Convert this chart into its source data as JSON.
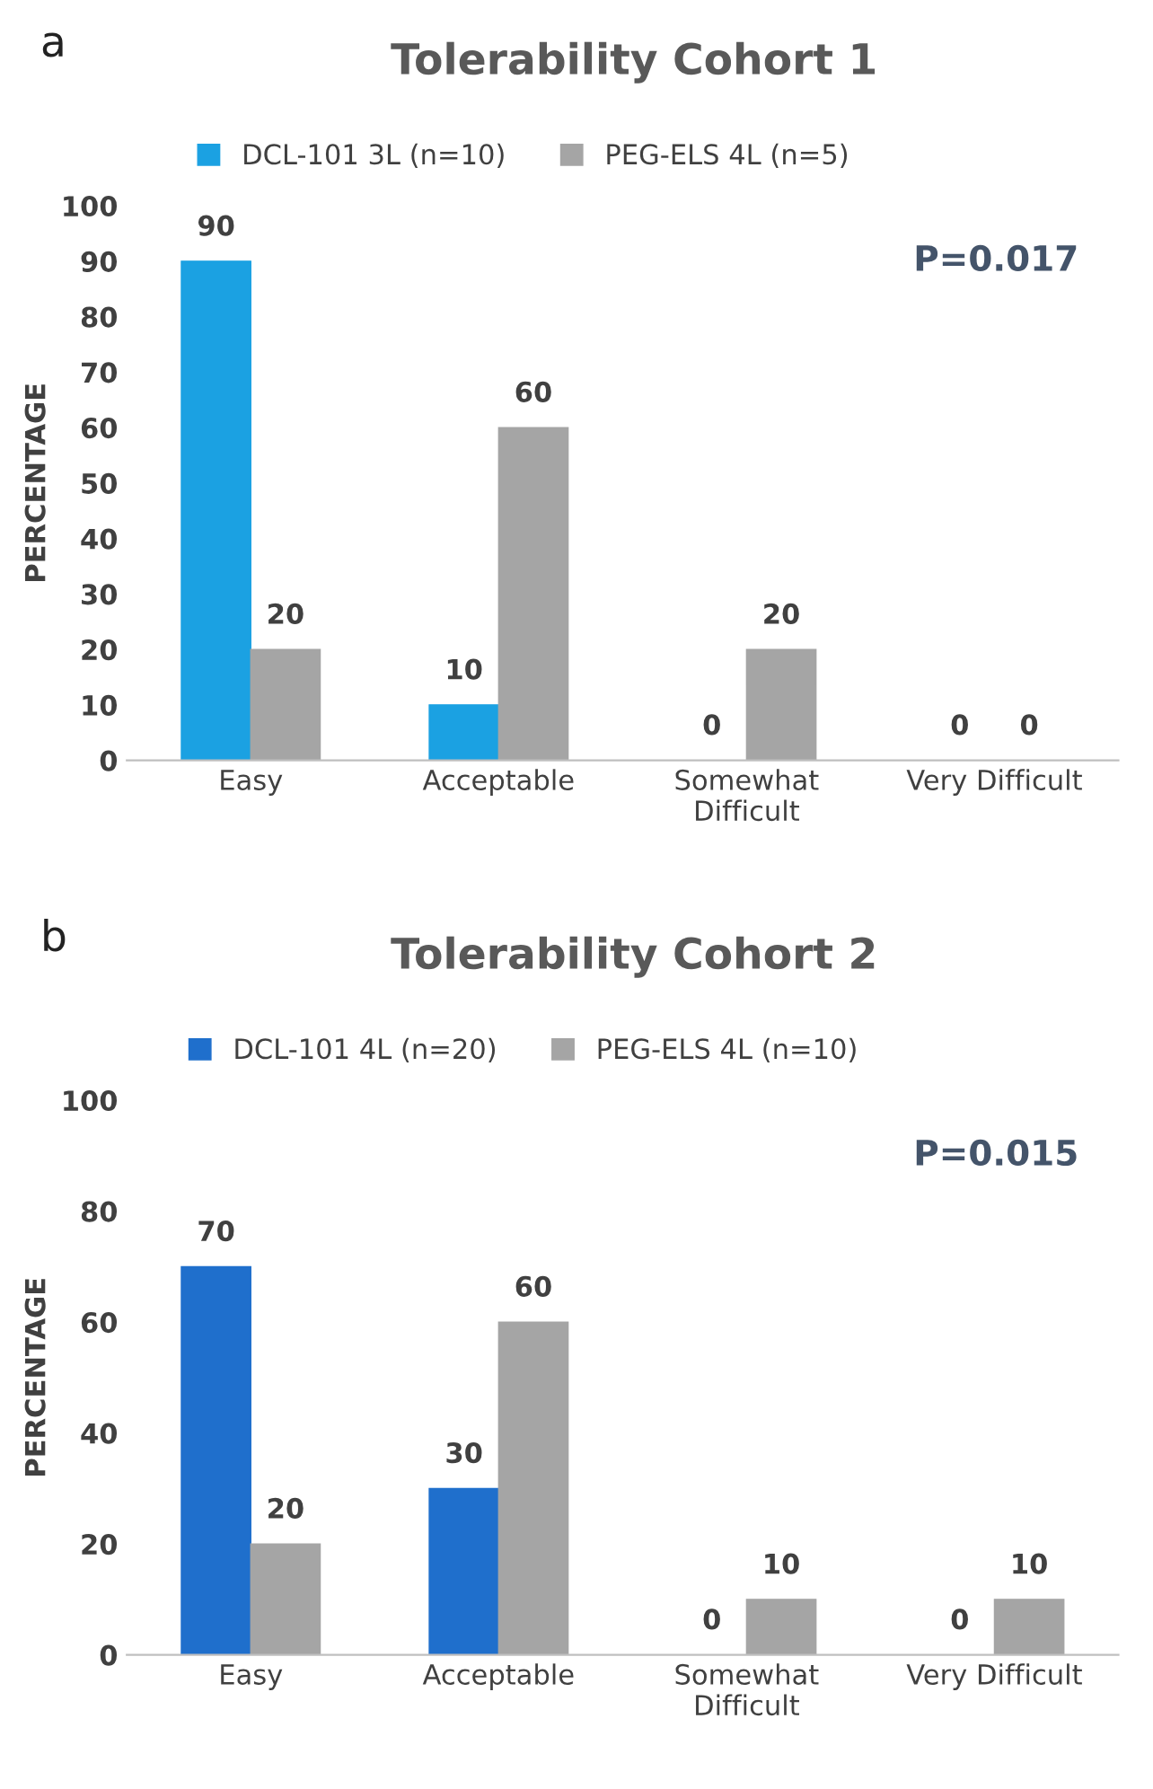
{
  "chart_data": [
    {
      "type": "bar",
      "title": "Tolerability Cohort 1",
      "ylabel": "PERCENTAGE",
      "categories": [
        "Easy",
        "Acceptable",
        "Somewhat\nDifficult",
        "Very Difficult"
      ],
      "series": [
        {
          "name": "DCL-101 3L (n=10)",
          "color": "#1ba1e2",
          "values": [
            90,
            10,
            0,
            0
          ]
        },
        {
          "name": "PEG-ELS 4L (n=5)",
          "color": "#a5a5a5",
          "values": [
            20,
            60,
            20,
            0
          ]
        }
      ],
      "ylim": [
        0,
        100
      ],
      "yticks": [
        0,
        10,
        20,
        30,
        40,
        50,
        60,
        70,
        80,
        90,
        100
      ],
      "data_labels": true,
      "legend": "top",
      "grid": false,
      "annotations": [
        "a",
        "P=0.017"
      ]
    },
    {
      "type": "bar",
      "title": "Tolerability Cohort 2",
      "ylabel": "PERCENTAGE",
      "categories": [
        "Easy",
        "Acceptable",
        "Somewhat\nDifficult",
        "Very Difficult"
      ],
      "series": [
        {
          "name": "DCL-101 4L (n=20)",
          "color": "#1f6fcc",
          "values": [
            70,
            30,
            0,
            0
          ]
        },
        {
          "name": "PEG-ELS 4L (n=10)",
          "color": "#a5a5a5",
          "values": [
            20,
            60,
            10,
            10
          ]
        }
      ],
      "ylim": [
        0,
        100
      ],
      "yticks": [
        0,
        20,
        40,
        60,
        80,
        100
      ],
      "data_labels": true,
      "legend": "top",
      "grid": false,
      "annotations": [
        "b",
        "P=0.015"
      ]
    }
  ]
}
